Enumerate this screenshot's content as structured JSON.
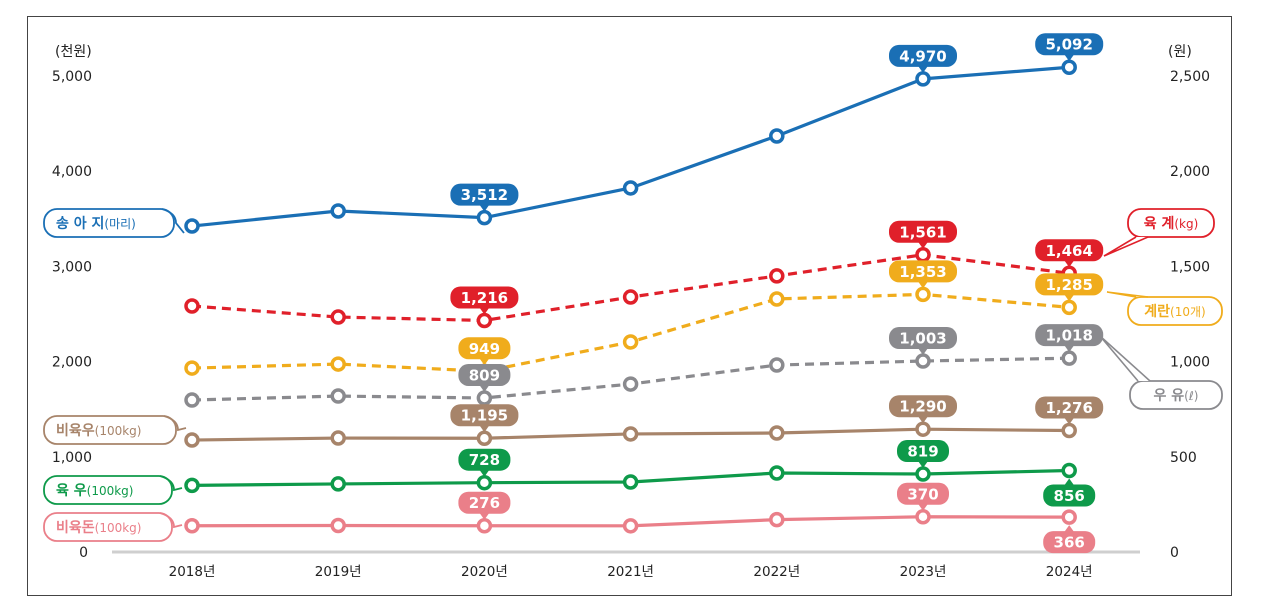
{
  "chart_data": {
    "type": "line",
    "title": "",
    "categories": [
      "2018년",
      "2019년",
      "2020년",
      "2021년",
      "2022년",
      "2023년",
      "2024년"
    ],
    "left_axis": {
      "unit": "(천원)",
      "ticks": [
        "0",
        "1,000",
        "2,000",
        "3,000",
        "4,000",
        "5,000"
      ],
      "ylim": [
        0,
        5000
      ]
    },
    "right_axis": {
      "unit": "(원)",
      "ticks": [
        "0",
        "500",
        "1,000",
        "1,500",
        "2,000",
        "2,500"
      ],
      "ylim": [
        0,
        2500
      ]
    },
    "grid": false,
    "series": [
      {
        "name": "송 아 지",
        "unit": "(마리)",
        "axis": "left",
        "color": "#1a6fb5",
        "dashed": false,
        "legend_side": "left",
        "values": [
          3424,
          3582,
          3512,
          3824,
          4370,
          4970,
          5092
        ],
        "labels": [
          null,
          null,
          "3,512",
          null,
          null,
          "4,970",
          "5,092"
        ],
        "label_pos": [
          null,
          null,
          "above",
          null,
          null,
          "above",
          "above"
        ]
      },
      {
        "name": "육 계",
        "unit": "(kg)",
        "axis": "right",
        "color": "#e0202a",
        "dashed": true,
        "legend_side": "right",
        "values": [
          1292,
          1234,
          1216,
          1339,
          1450,
          1561,
          1464
        ],
        "labels": [
          null,
          null,
          "1,216",
          null,
          null,
          "1,561",
          "1,464"
        ],
        "label_pos": [
          null,
          null,
          "above",
          null,
          null,
          "above",
          "above"
        ]
      },
      {
        "name": "계란",
        "unit": "(10개)",
        "axis": "right",
        "color": "#f0ac1c",
        "dashed": true,
        "legend_side": "right",
        "values": [
          966,
          987,
          949,
          1103,
          1329,
          1353,
          1285
        ],
        "labels": [
          null,
          null,
          "949",
          null,
          null,
          "1,353",
          "1,285"
        ],
        "label_pos": [
          null,
          null,
          "above",
          null,
          null,
          "above",
          "above"
        ]
      },
      {
        "name": "우 유",
        "unit": "(ℓ)",
        "axis": "right",
        "color": "#8a8a8e",
        "dashed": true,
        "legend_side": "right",
        "values": [
          798,
          819,
          809,
          882,
          982,
          1003,
          1018
        ],
        "labels": [
          null,
          null,
          "809",
          null,
          null,
          "1,003",
          "1,018"
        ],
        "label_pos": [
          null,
          null,
          "above",
          null,
          null,
          "above",
          "above"
        ]
      },
      {
        "name": "비육우",
        "unit": "(100kg)",
        "axis": "left",
        "color": "#a7846a",
        "dashed": false,
        "legend_side": "left",
        "values": [
          1176,
          1197,
          1195,
          1240,
          1250,
          1290,
          1276
        ],
        "labels": [
          null,
          null,
          "1,195",
          null,
          null,
          "1,290",
          "1,276"
        ],
        "label_pos": [
          null,
          null,
          "above",
          null,
          null,
          "above",
          "above"
        ]
      },
      {
        "name": "육 우",
        "unit": "(100kg)",
        "axis": "left",
        "color": "#0e9a4a",
        "dashed": false,
        "legend_side": "left",
        "values": [
          700,
          715,
          728,
          735,
          830,
          819,
          856
        ],
        "labels": [
          null,
          null,
          "728",
          null,
          null,
          "819",
          "856"
        ],
        "label_pos": [
          null,
          null,
          "above",
          null,
          null,
          "above",
          "below"
        ]
      },
      {
        "name": "비육돈",
        "unit": "(100kg)",
        "axis": "left",
        "color": "#ea7f89",
        "dashed": false,
        "legend_side": "left",
        "values": [
          276,
          278,
          276,
          275,
          340,
          370,
          366
        ],
        "labels": [
          null,
          null,
          "276",
          null,
          null,
          "370",
          "366"
        ],
        "label_pos": [
          null,
          null,
          "above",
          null,
          null,
          "above",
          "below"
        ]
      }
    ]
  }
}
